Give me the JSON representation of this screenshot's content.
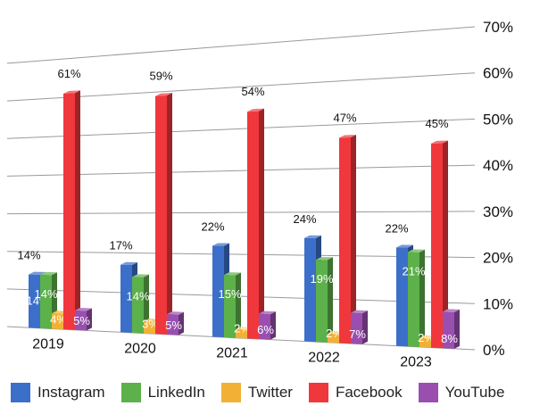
{
  "chart_data": {
    "type": "bar",
    "categories": [
      "2019",
      "2020",
      "2021",
      "2022",
      "2023"
    ],
    "series": [
      {
        "name": "Instagram",
        "color": "#3b6fc9",
        "values": [
          14,
          17,
          22,
          24,
          22
        ]
      },
      {
        "name": "LinkedIn",
        "color": "#5cb14a",
        "values": [
          14,
          14,
          15,
          19,
          21
        ]
      },
      {
        "name": "Twitter",
        "color": "#f2b134",
        "values": [
          4,
          3,
          2,
          2,
          2
        ]
      },
      {
        "name": "Facebook",
        "color": "#f0373c",
        "values": [
          61,
          59,
          54,
          47,
          45
        ]
      },
      {
        "name": "YouTube",
        "color": "#9a4fb0",
        "values": [
          5,
          5,
          6,
          7,
          8
        ]
      }
    ],
    "y_ticks": [
      "0%",
      "10%",
      "20%",
      "30%",
      "40%",
      "50%",
      "60%",
      "70%"
    ],
    "ylim": [
      0,
      70
    ],
    "value_suffix": "%",
    "grid": true,
    "legend_position": "bottom"
  }
}
